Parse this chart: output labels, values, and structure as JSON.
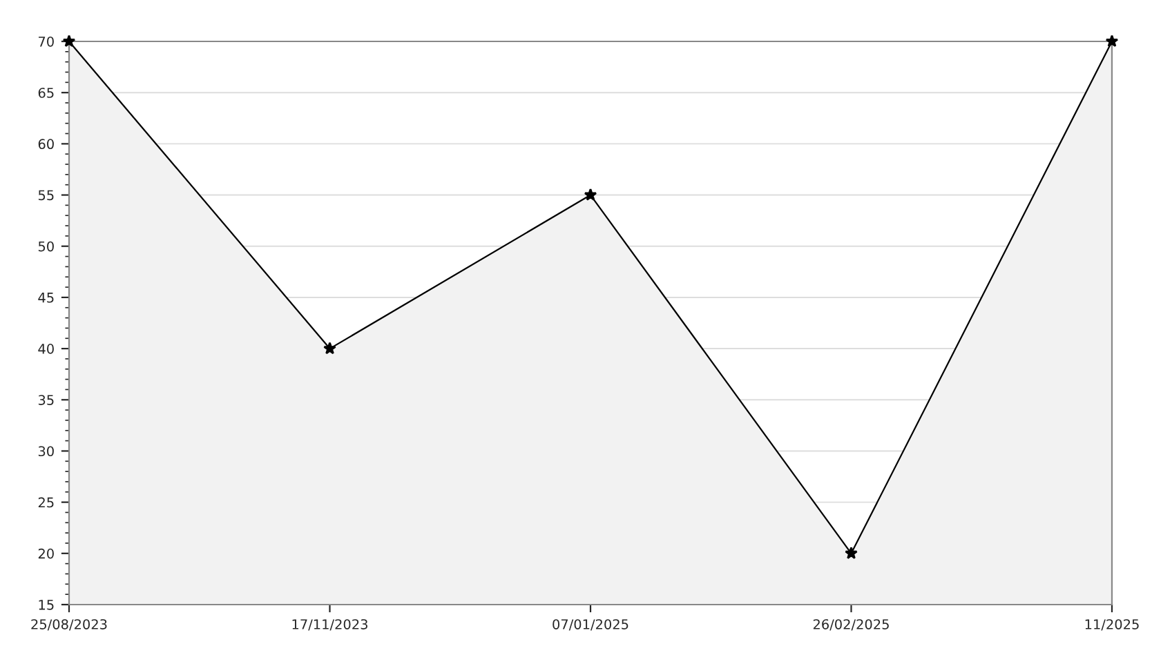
{
  "chart_data": {
    "type": "area",
    "categories": [
      "25/08/2023",
      "17/11/2023",
      "07/01/2025",
      "26/02/2025",
      "11/2025"
    ],
    "series": [
      {
        "color": "#f2f2f2",
        "values": [
          70,
          40,
          55,
          20,
          70
        ]
      }
    ],
    "ylim": [
      15,
      70
    ],
    "yticks": [
      15,
      20,
      25,
      30,
      35,
      40,
      45,
      50,
      55,
      60,
      65,
      70
    ],
    "grid": "y",
    "marker": "star",
    "line_style": "solid"
  }
}
